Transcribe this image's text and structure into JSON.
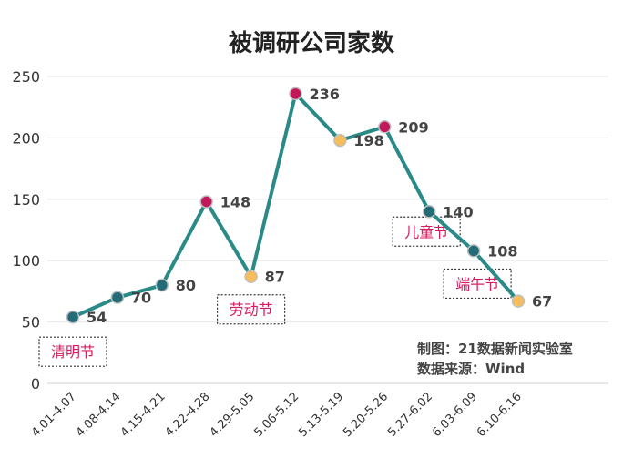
{
  "chart_data": {
    "type": "line",
    "title": "被调研公司家数",
    "xlabel": "",
    "ylabel": "",
    "categories": [
      "4.01-4.07",
      "4.08-4.14",
      "4.15-4.21",
      "4.22-4.28",
      "4.29-5.05",
      "5.06-5.12",
      "5.13-5.19",
      "5.20-5.26",
      "5.27-6.02",
      "6.03-6.09",
      "6.10-6.16"
    ],
    "series": [
      {
        "values": [
          54,
          70,
          80,
          148,
          87,
          236,
          198,
          209,
          140,
          108,
          67
        ]
      }
    ],
    "ylim": [
      0,
      250
    ],
    "yticks": [
      0,
      50,
      100,
      150,
      200,
      250
    ],
    "grid": "horizontal",
    "line_color": "#2a8a87",
    "marker_kinds": [
      "normal",
      "normal",
      "normal",
      "high",
      "holiday",
      "high",
      "holiday",
      "high",
      "normal",
      "normal",
      "holiday"
    ],
    "marker_colors": {
      "normal": "#236b77",
      "high": "#c2185b",
      "holiday": "#f5bd5c"
    },
    "annotations": [
      {
        "text": "清明节",
        "category_index": 0
      },
      {
        "text": "劳动节",
        "category_index": 4
      },
      {
        "text": "儿童节",
        "category_index": 8
      },
      {
        "text": "端午节",
        "category_index": 9
      }
    ],
    "annotation_color": "#d81b60",
    "source_lines": [
      "制图：21数据新闻实验室",
      "数据来源：Wind"
    ]
  }
}
